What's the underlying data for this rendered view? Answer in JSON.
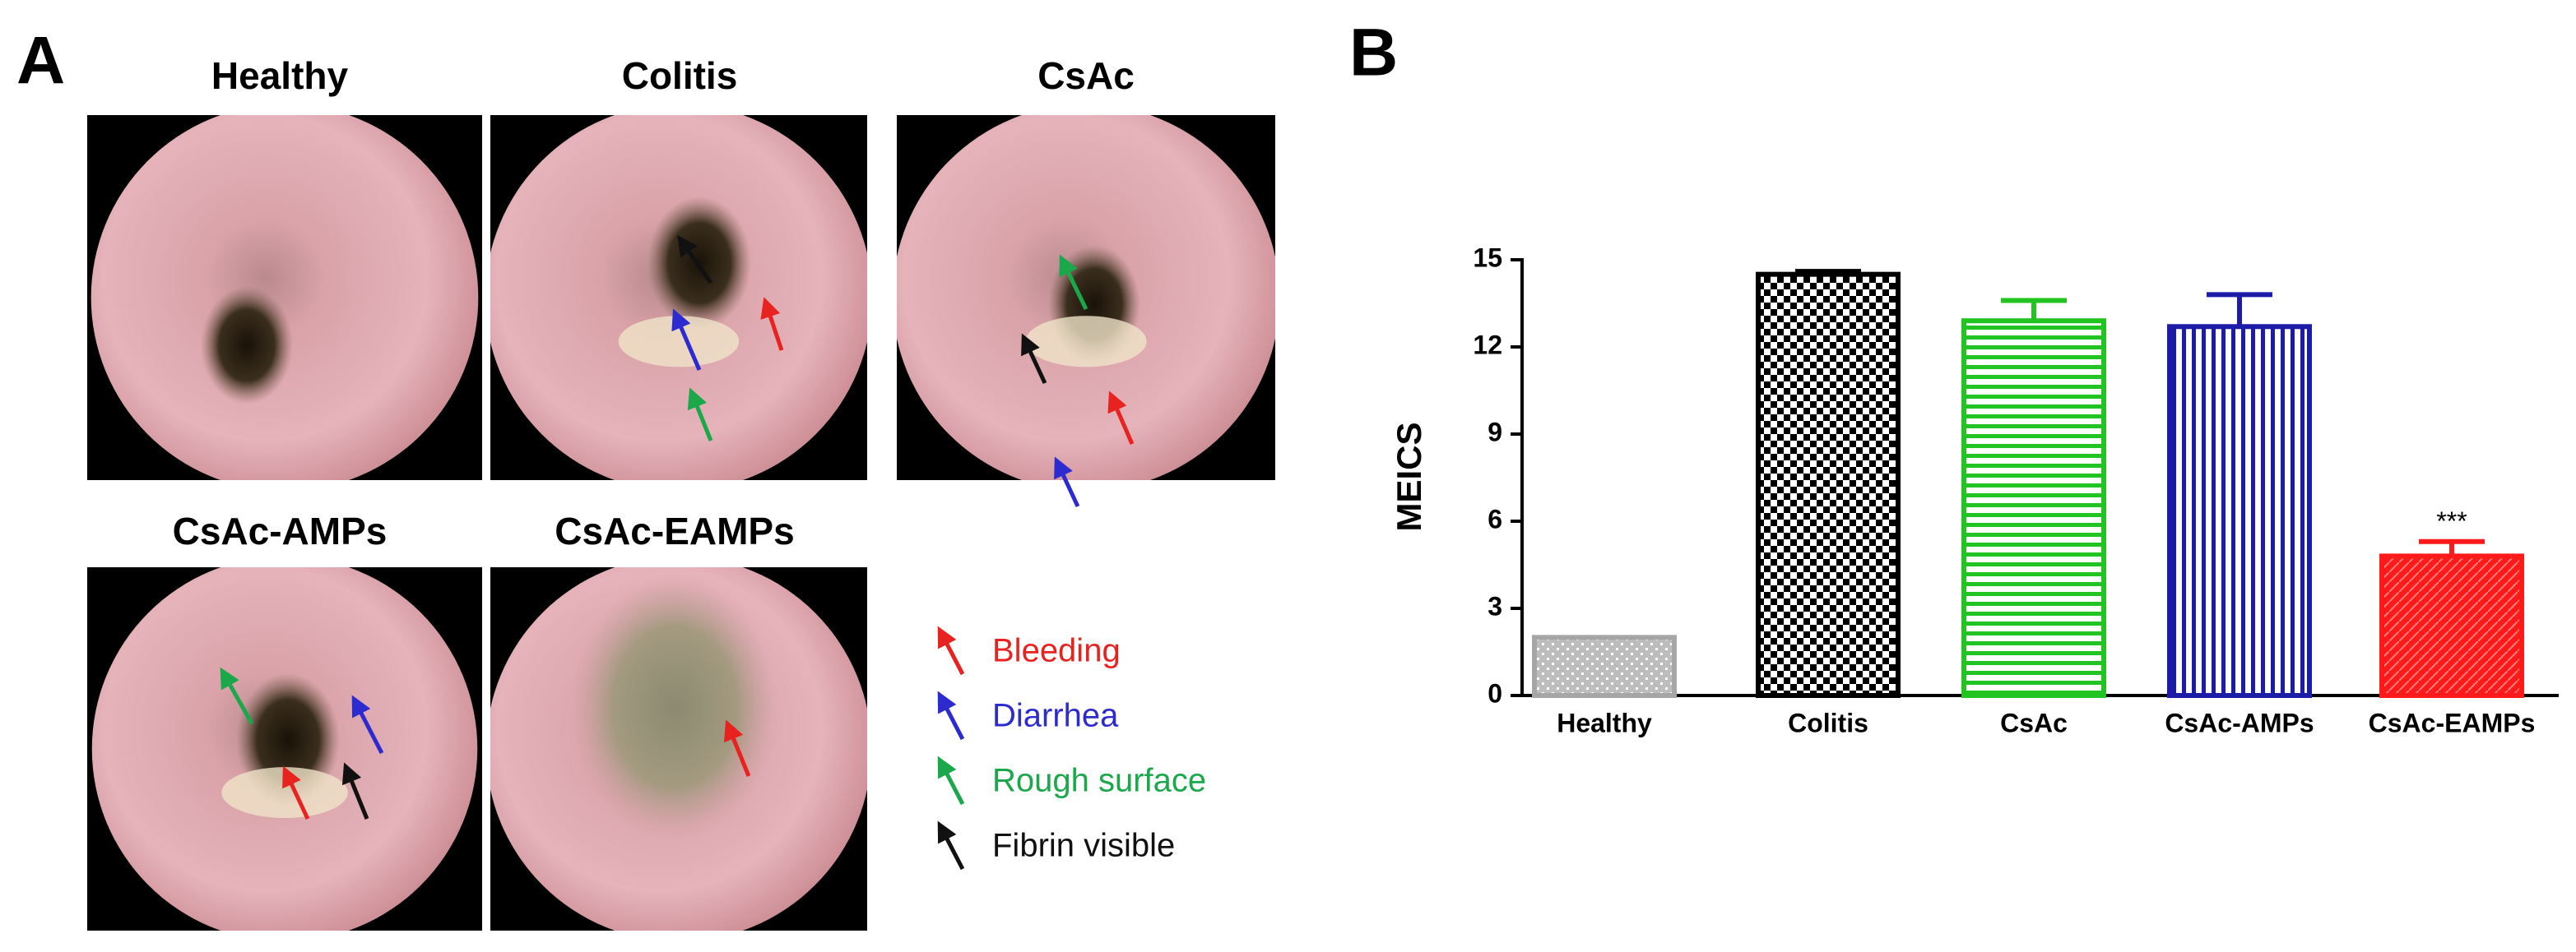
{
  "panel_a": {
    "label": "A",
    "images": [
      {
        "title": "Healthy"
      },
      {
        "title": "Colitis"
      },
      {
        "title": "CsAc"
      },
      {
        "title": "CsAc-AMPs"
      },
      {
        "title": "CsAc-EAMPs"
      }
    ],
    "legend": [
      {
        "label": "Bleeding",
        "color": "#e8231f"
      },
      {
        "label": "Diarrhea",
        "color": "#2b2bd0"
      },
      {
        "label": "Rough surface",
        "color": "#1aa84a"
      },
      {
        "label": "Fibrin visible",
        "color": "#111111"
      }
    ]
  },
  "chart_data": {
    "type": "bar",
    "panel_label": "B",
    "y_label": "MEICS",
    "categories": [
      "Healthy",
      "Colitis",
      "CsAc",
      "CsAc-AMPs",
      "CsAc-EAMPs"
    ],
    "values": [
      2.0,
      14.5,
      12.9,
      12.7,
      4.8
    ],
    "errors": [
      null,
      0.1,
      0.7,
      1.1,
      0.5
    ],
    "colors": [
      "#a6a6a6",
      "#000000",
      "#22c422",
      "#1c1ca8",
      "#ff1a1a"
    ],
    "patterns": [
      "dots",
      "checker",
      "hlines",
      "vlines",
      "diag"
    ],
    "annotations": [
      {
        "category": 4,
        "text": "***"
      }
    ],
    "ylim": [
      0,
      15
    ],
    "yticks": [
      0,
      3,
      6,
      9,
      12,
      15
    ],
    "grid": false
  }
}
